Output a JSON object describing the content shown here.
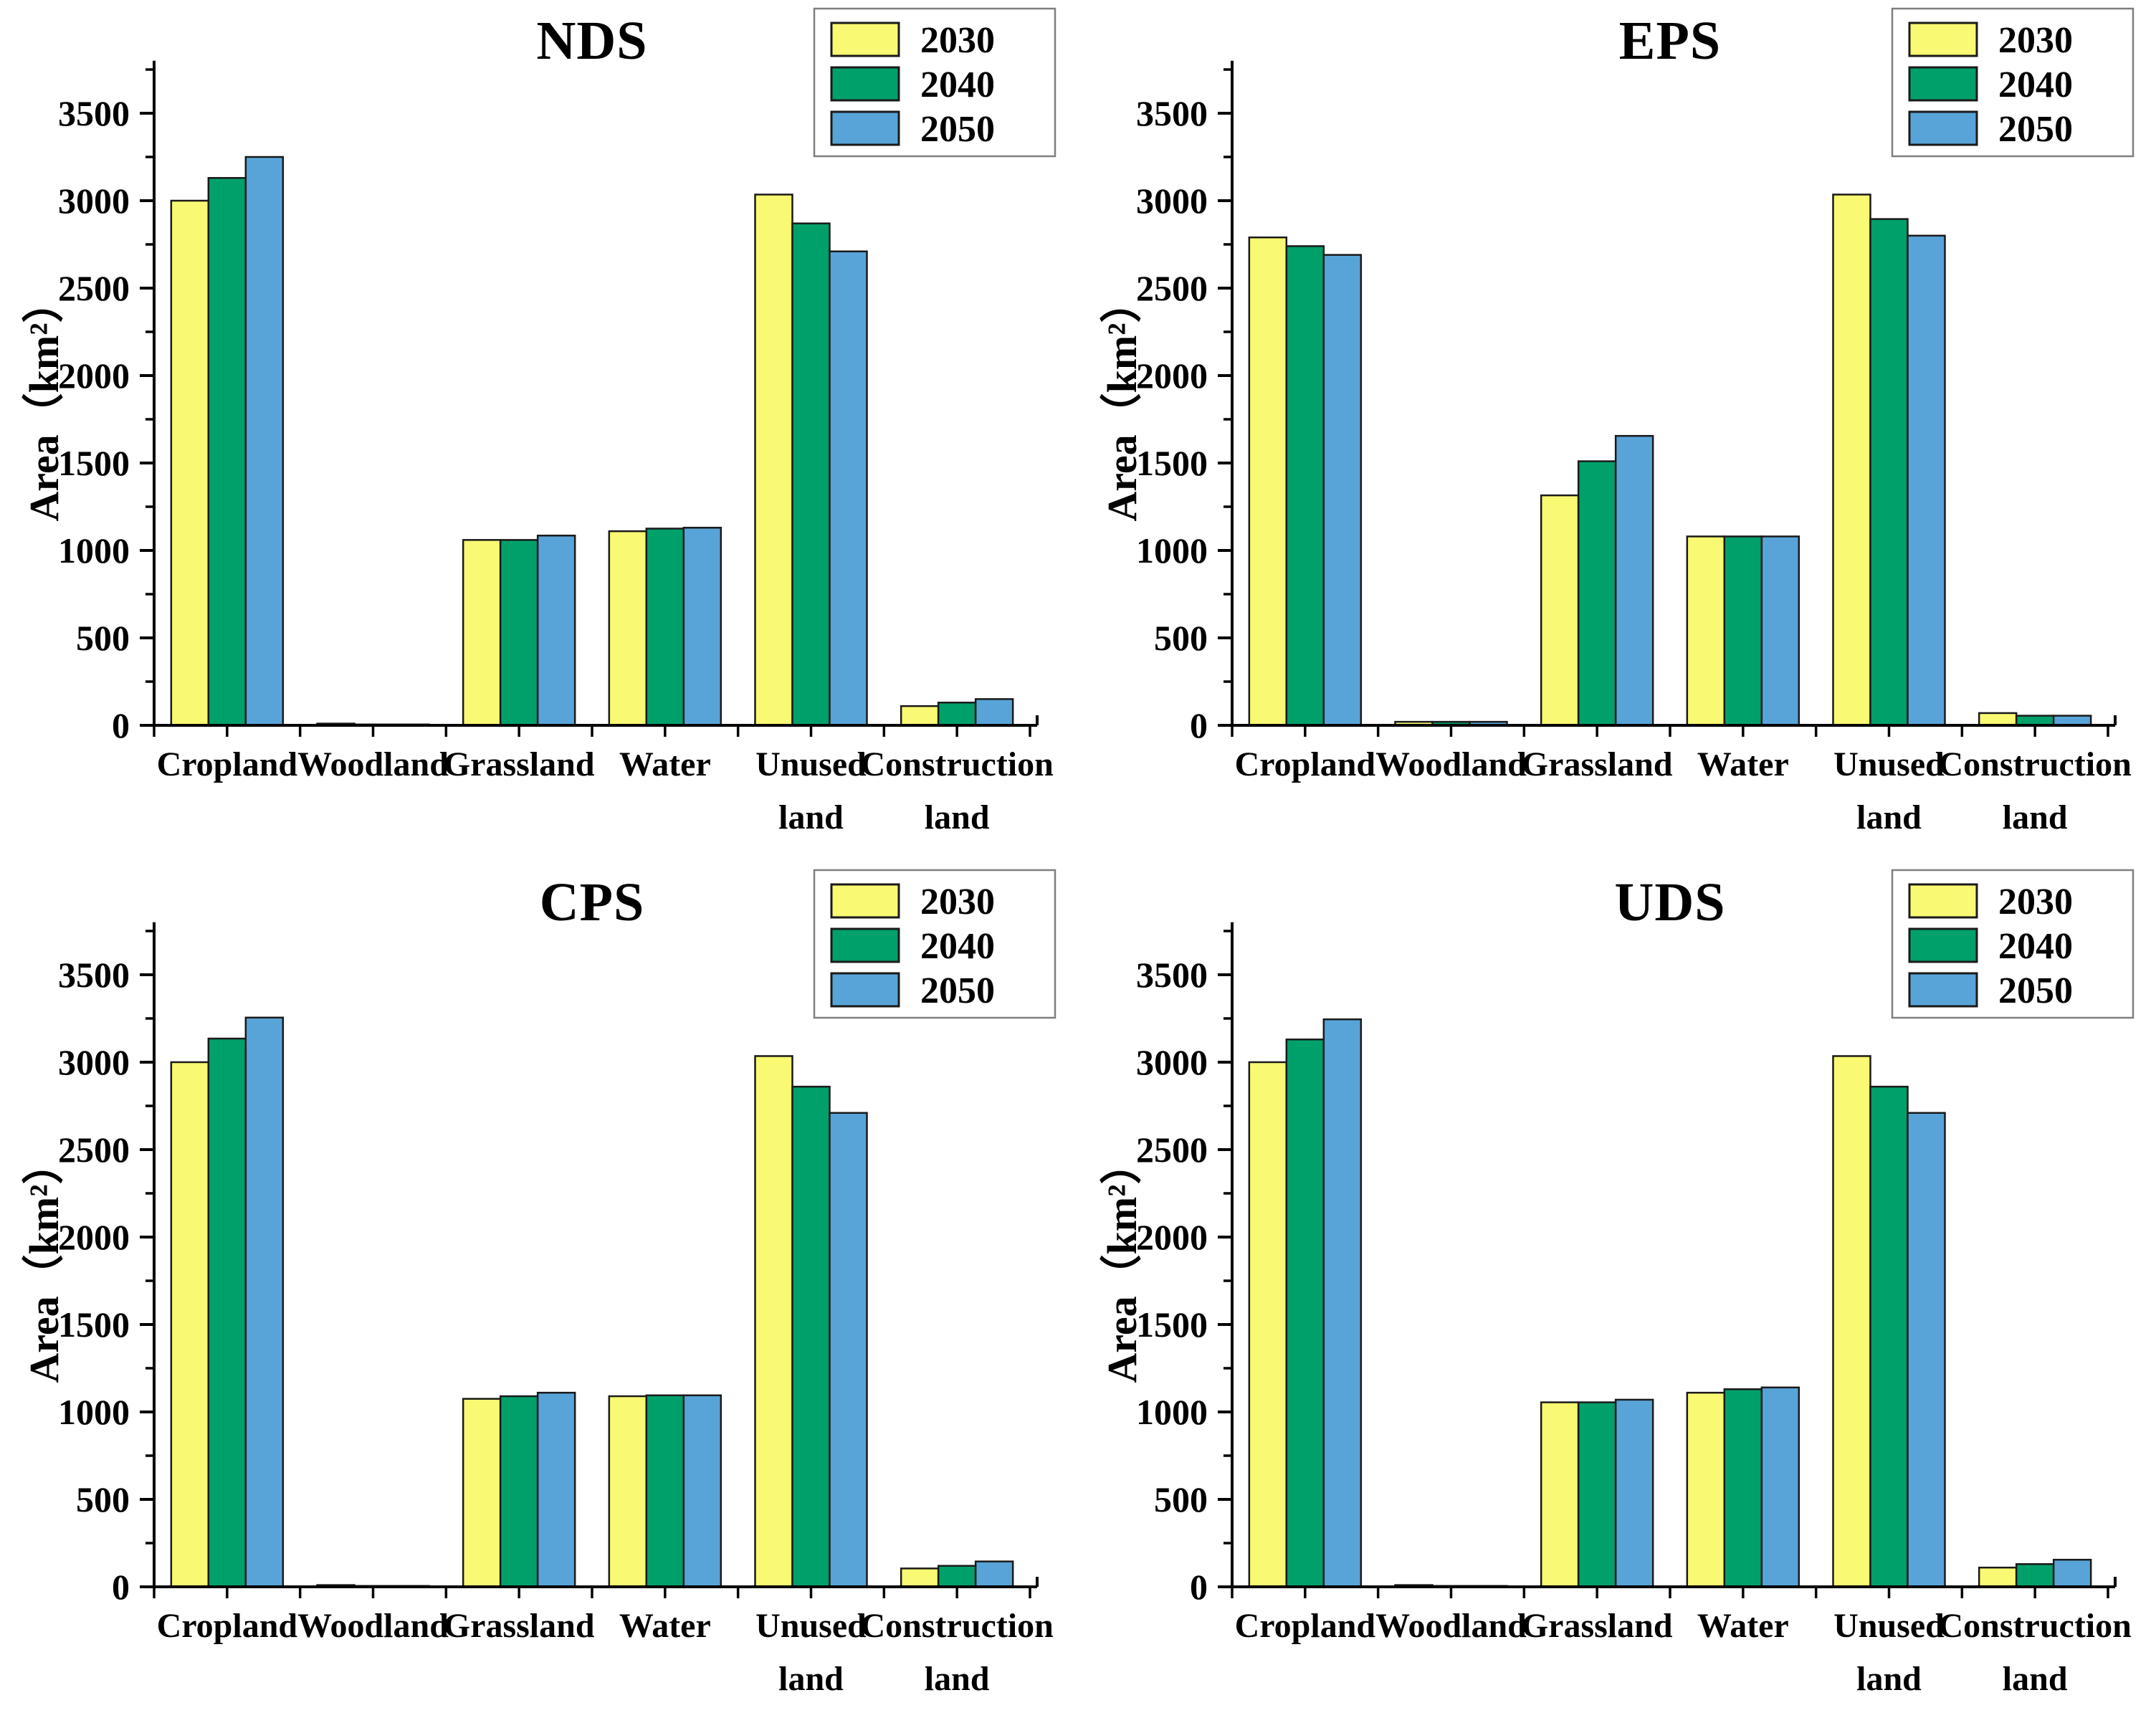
{
  "figure": {
    "description": "Four grouped bar charts of projected land-use area by scenario",
    "background": "#ffffff"
  },
  "colors": {
    "series_fill": [
      "#F9F973",
      "#00A06B",
      "#58A4D8"
    ],
    "bar_border": "#1a1a1a",
    "axis": "#000000",
    "text": "#000000",
    "legend_border": "#7f7f7f",
    "legend_bg": "#ffffff"
  },
  "chart_data": [
    {
      "type": "bar",
      "title": "NDS",
      "ylabel": "Area（km²）",
      "xlabel": "",
      "ylim": [
        0,
        3800
      ],
      "yticks": [
        0,
        500,
        1000,
        1500,
        2000,
        2500,
        3000,
        3500
      ],
      "minor_tick_step": 250,
      "grid": false,
      "legend_position": "top-right",
      "legend": [
        "2030",
        "2040",
        "2050"
      ],
      "categories": [
        "Cropland",
        "Woodland",
        "Grassland",
        "Water",
        "Unused land",
        "Construction land"
      ],
      "series": [
        {
          "name": "2030",
          "values": [
            3000,
            10,
            1060,
            1110,
            3035,
            110
          ]
        },
        {
          "name": "2040",
          "values": [
            3130,
            5,
            1060,
            1125,
            2870,
            130
          ]
        },
        {
          "name": "2050",
          "values": [
            3250,
            5,
            1085,
            1130,
            2710,
            150
          ]
        }
      ]
    },
    {
      "type": "bar",
      "title": "EPS",
      "ylabel": "Area（km²）",
      "xlabel": "",
      "ylim": [
        0,
        3800
      ],
      "yticks": [
        0,
        500,
        1000,
        1500,
        2000,
        2500,
        3000,
        3500
      ],
      "minor_tick_step": 250,
      "grid": false,
      "legend_position": "top-right",
      "legend": [
        "2030",
        "2040",
        "2050"
      ],
      "categories": [
        "Cropland",
        "Woodland",
        "Grassland",
        "Water",
        "Unused land",
        "Construction land"
      ],
      "series": [
        {
          "name": "2030",
          "values": [
            2790,
            20,
            1315,
            1080,
            3035,
            70
          ]
        },
        {
          "name": "2040",
          "values": [
            2740,
            20,
            1510,
            1080,
            2895,
            55
          ]
        },
        {
          "name": "2050",
          "values": [
            2690,
            20,
            1655,
            1080,
            2800,
            55
          ]
        }
      ]
    },
    {
      "type": "bar",
      "title": "CPS",
      "ylabel": "Area（km²）",
      "xlabel": "",
      "ylim": [
        0,
        3800
      ],
      "yticks": [
        0,
        500,
        1000,
        1500,
        2000,
        2500,
        3000,
        3500
      ],
      "minor_tick_step": 250,
      "grid": false,
      "legend_position": "top-right",
      "legend": [
        "2030",
        "2040",
        "2050"
      ],
      "categories": [
        "Cropland",
        "Woodland",
        "Grassland",
        "Water",
        "Unused land",
        "Construction land"
      ],
      "series": [
        {
          "name": "2030",
          "values": [
            3000,
            10,
            1075,
            1090,
            3035,
            105
          ]
        },
        {
          "name": "2040",
          "values": [
            3135,
            5,
            1090,
            1095,
            2860,
            120
          ]
        },
        {
          "name": "2050",
          "values": [
            3255,
            5,
            1110,
            1095,
            2710,
            145
          ]
        }
      ]
    },
    {
      "type": "bar",
      "title": "UDS",
      "ylabel": "Area（km²）",
      "xlabel": "",
      "ylim": [
        0,
        3800
      ],
      "yticks": [
        0,
        500,
        1000,
        1500,
        2000,
        2500,
        3000,
        3500
      ],
      "minor_tick_step": 250,
      "grid": false,
      "legend_position": "top-right",
      "legend": [
        "2030",
        "2040",
        "2050"
      ],
      "categories": [
        "Cropland",
        "Woodland",
        "Grassland",
        "Water",
        "Unused land",
        "Construction land"
      ],
      "series": [
        {
          "name": "2030",
          "values": [
            3000,
            10,
            1055,
            1110,
            3035,
            110
          ]
        },
        {
          "name": "2040",
          "values": [
            3130,
            5,
            1055,
            1130,
            2860,
            130
          ]
        },
        {
          "name": "2050",
          "values": [
            3245,
            5,
            1070,
            1140,
            2710,
            155
          ]
        }
      ]
    }
  ]
}
